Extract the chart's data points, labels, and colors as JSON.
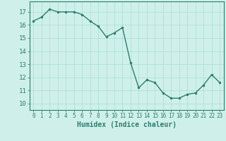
{
  "x": [
    0,
    1,
    2,
    3,
    4,
    5,
    6,
    7,
    8,
    9,
    10,
    11,
    12,
    13,
    14,
    15,
    16,
    17,
    18,
    19,
    20,
    21,
    22,
    23
  ],
  "y": [
    16.3,
    16.6,
    17.2,
    17.0,
    17.0,
    17.0,
    16.8,
    16.3,
    15.9,
    15.1,
    15.4,
    15.8,
    13.1,
    11.2,
    11.8,
    11.6,
    10.8,
    10.4,
    10.4,
    10.7,
    10.8,
    11.4,
    12.2,
    11.6
  ],
  "line_color": "#2e7d6e",
  "marker": ".",
  "markersize": 3,
  "linewidth": 1.0,
  "xlabel": "Humidex (Indice chaleur)",
  "xlabel_fontsize": 7,
  "xlabel_fontweight": "bold",
  "ylim": [
    9.5,
    17.8
  ],
  "xlim": [
    -0.5,
    23.5
  ],
  "yticks": [
    10,
    11,
    12,
    13,
    14,
    15,
    16,
    17
  ],
  "xticks": [
    0,
    1,
    2,
    3,
    4,
    5,
    6,
    7,
    8,
    9,
    10,
    11,
    12,
    13,
    14,
    15,
    16,
    17,
    18,
    19,
    20,
    21,
    22,
    23
  ],
  "background_color": "#cff0ea",
  "grid_color": "#a8ddd5",
  "tick_color": "#2e7d6e",
  "axis_color": "#2e7d6e",
  "tick_fontsize": 5.5,
  "ytick_fontsize": 6.5
}
